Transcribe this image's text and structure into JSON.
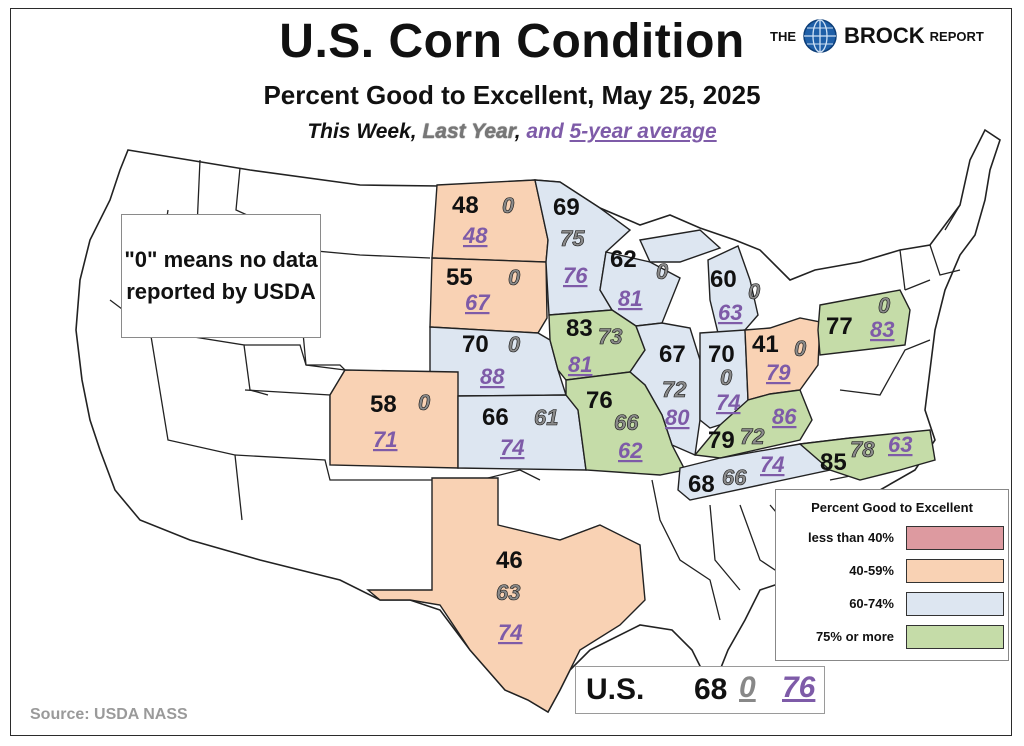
{
  "header": {
    "title": "U.S. Corn Condition",
    "subtitle": "Percent Good to Excellent, May 25, 2025",
    "line_this_week": "This Week",
    "line_sep1": ", ",
    "line_last_year": "Last Year",
    "line_sep2": ",  ",
    "line_and": "and ",
    "line_avg": "5-year average"
  },
  "brand": {
    "the": "THE",
    "name": "BROCK",
    "report": "REPORT"
  },
  "note": {
    "text": "\"0\" means no data reported by USDA"
  },
  "source": "Source: USDA NASS",
  "national": {
    "label": "U.S.",
    "this_week": "68",
    "last_year": "0",
    "five_year_avg": "76"
  },
  "key": {
    "title": "Percent Good to Excellent",
    "items": [
      {
        "label": "less than 40%",
        "color": "#dd9aa0"
      },
      {
        "label": "40-59%",
        "color": "#f9d2b4"
      },
      {
        "label": "60-74%",
        "color": "#dde6f1"
      },
      {
        "label": "75% or more",
        "color": "#c5dca8"
      }
    ]
  },
  "colors": {
    "lt40": "#dd9aa0",
    "c40_59": "#f9d2b4",
    "c60_74": "#dde6f1",
    "c75": "#c5dca8",
    "this_week": "#111111",
    "last_year": "#8a8a8a",
    "avg": "#7e5ba8"
  },
  "states": [
    {
      "id": "ND",
      "this_week": "48",
      "last_year": "0",
      "avg": "48",
      "category": "c40_59"
    },
    {
      "id": "SD",
      "this_week": "55",
      "last_year": "0",
      "avg": "67",
      "category": "c40_59"
    },
    {
      "id": "MN",
      "this_week": "69",
      "last_year": "75",
      "avg": "76",
      "category": "c60_74"
    },
    {
      "id": "WI",
      "this_week": "62",
      "last_year": "0",
      "avg": "81",
      "category": "c60_74"
    },
    {
      "id": "MI",
      "this_week": "60",
      "last_year": "0",
      "avg": "63",
      "category": "c60_74"
    },
    {
      "id": "NE",
      "this_week": "70",
      "last_year": "0",
      "avg": "88",
      "category": "c60_74"
    },
    {
      "id": "IA",
      "this_week": "83",
      "last_year": "73",
      "avg": "81",
      "category": "c75"
    },
    {
      "id": "IL",
      "this_week": "67",
      "last_year": "72",
      "avg": "80",
      "category": "c60_74"
    },
    {
      "id": "IN",
      "this_week": "70",
      "last_year": "0",
      "avg": "74",
      "category": "c60_74"
    },
    {
      "id": "OH",
      "this_week": "41",
      "last_year": "0",
      "avg": "79",
      "category": "c40_59"
    },
    {
      "id": "PA",
      "this_week": "77",
      "last_year": "0",
      "avg": "83",
      "category": "c75"
    },
    {
      "id": "CO",
      "this_week": "58",
      "last_year": "0",
      "avg": "71",
      "category": "c40_59"
    },
    {
      "id": "KS",
      "this_week": "66",
      "last_year": "61",
      "avg": "74",
      "category": "c60_74"
    },
    {
      "id": "MO",
      "this_week": "76",
      "last_year": "66",
      "avg": "62",
      "category": "c75"
    },
    {
      "id": "KY",
      "this_week": "79",
      "last_year": "72",
      "avg": "86",
      "category": "c75"
    },
    {
      "id": "TN",
      "this_week": "68",
      "last_year": "66",
      "avg": "74",
      "category": "c60_74"
    },
    {
      "id": "NC",
      "this_week": "85",
      "last_year": "78",
      "avg": "63",
      "category": "c75"
    },
    {
      "id": "TX",
      "this_week": "46",
      "last_year": "63",
      "avg": "74",
      "category": "c40_59"
    }
  ]
}
